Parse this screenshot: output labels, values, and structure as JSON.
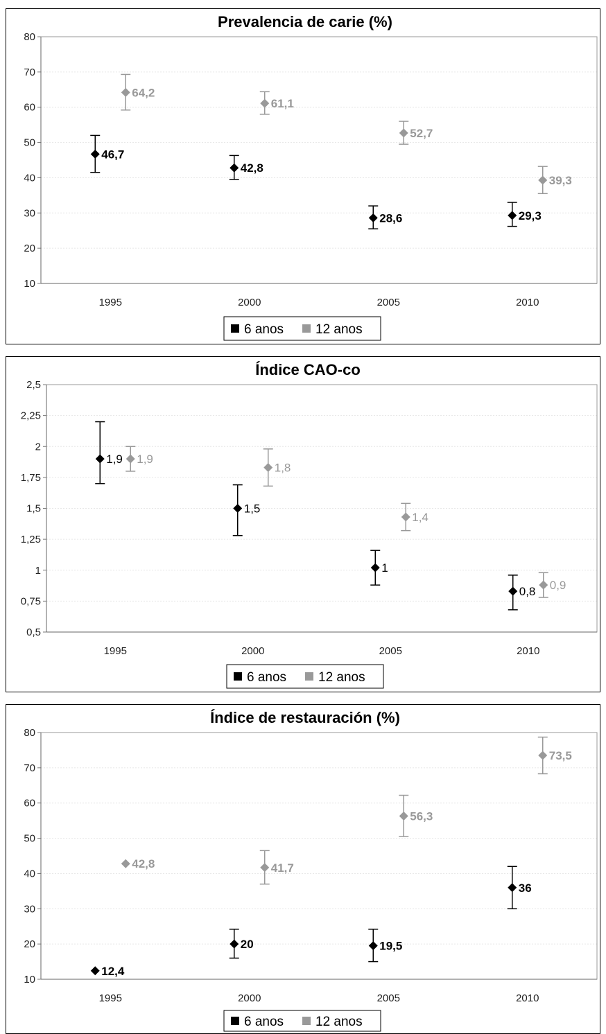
{
  "chart_data": [
    {
      "type": "scatter",
      "title": "Prevalencia de carie (%)",
      "categories": [
        "1995",
        "2000",
        "2005",
        "2010"
      ],
      "ylim": [
        10,
        80
      ],
      "yticks": [
        10,
        20,
        30,
        40,
        50,
        60,
        70,
        80
      ],
      "ytick_labels": [
        "10",
        "20",
        "30",
        "40",
        "50",
        "60",
        "70",
        "80"
      ],
      "grid": true,
      "legend_position": "bottom",
      "series": [
        {
          "name": "6 anos",
          "color": "#000000",
          "values": [
            46.7,
            42.8,
            28.6,
            29.3
          ],
          "labels": [
            "46,7",
            "42,8",
            "28,6",
            "29,3"
          ],
          "err_low": [
            41.5,
            39.5,
            25.5,
            26.2
          ],
          "err_high": [
            52.0,
            46.3,
            32.0,
            33.0
          ],
          "label_bold": true
        },
        {
          "name": "12 anos",
          "color": "#999999",
          "values": [
            64.2,
            61.1,
            52.7,
            39.3
          ],
          "labels": [
            "64,2",
            "61,1",
            "52,7",
            "39,3"
          ],
          "err_low": [
            59.2,
            58.0,
            49.5,
            35.5
          ],
          "err_high": [
            69.3,
            64.4,
            56.0,
            43.2
          ],
          "label_bold": true
        }
      ]
    },
    {
      "type": "scatter",
      "title": "Índice CAO-co",
      "categories": [
        "1995",
        "2000",
        "2005",
        "2010"
      ],
      "ylim": [
        0.5,
        2.5
      ],
      "yticks": [
        0.5,
        0.75,
        1,
        1.25,
        1.5,
        1.75,
        2,
        2.25,
        2.5
      ],
      "ytick_labels": [
        "0,5",
        "0,75",
        "1",
        "1,25",
        "1,5",
        "1,75",
        "2",
        "2,25",
        "2,5"
      ],
      "grid": true,
      "legend_position": "bottom",
      "series": [
        {
          "name": "6 anos",
          "color": "#000000",
          "values": [
            1.9,
            1.5,
            1.02,
            0.83
          ],
          "labels": [
            "1,9",
            "1,5",
            "1",
            "0,8"
          ],
          "err_low": [
            1.7,
            1.28,
            0.88,
            0.68
          ],
          "err_high": [
            2.2,
            1.69,
            1.16,
            0.96
          ],
          "label_bold": false
        },
        {
          "name": "12 anos",
          "color": "#999999",
          "values": [
            1.9,
            1.83,
            1.43,
            0.88
          ],
          "labels": [
            "1,9",
            "1,8",
            "1,4",
            "0,9"
          ],
          "err_low": [
            1.8,
            1.68,
            1.32,
            0.78
          ],
          "err_high": [
            2.0,
            1.98,
            1.54,
            0.98
          ],
          "label_bold": false
        }
      ]
    },
    {
      "type": "scatter",
      "title": "Índice de restauración (%)",
      "categories": [
        "1995",
        "2000",
        "2005",
        "2010"
      ],
      "ylim": [
        10,
        80
      ],
      "yticks": [
        10,
        20,
        30,
        40,
        50,
        60,
        70,
        80
      ],
      "ytick_labels": [
        "10",
        "20",
        "30",
        "40",
        "50",
        "60",
        "70",
        "80"
      ],
      "grid": true,
      "legend_position": "bottom",
      "series": [
        {
          "name": "6 anos",
          "color": "#000000",
          "values": [
            12.4,
            20,
            19.5,
            36
          ],
          "labels": [
            "12,4",
            "20",
            "19,5",
            "36"
          ],
          "err_low": [
            null,
            16.0,
            15.0,
            30.0
          ],
          "err_high": [
            null,
            24.2,
            24.2,
            42.0
          ],
          "label_bold": true
        },
        {
          "name": "12 anos",
          "color": "#999999",
          "values": [
            42.8,
            41.7,
            56.3,
            73.5
          ],
          "labels": [
            "42,8",
            "41,7",
            "56,3",
            "73,5"
          ],
          "err_low": [
            null,
            37.0,
            50.5,
            68.3
          ],
          "err_high": [
            null,
            46.5,
            62.2,
            78.7
          ],
          "label_bold": true
        }
      ]
    }
  ]
}
